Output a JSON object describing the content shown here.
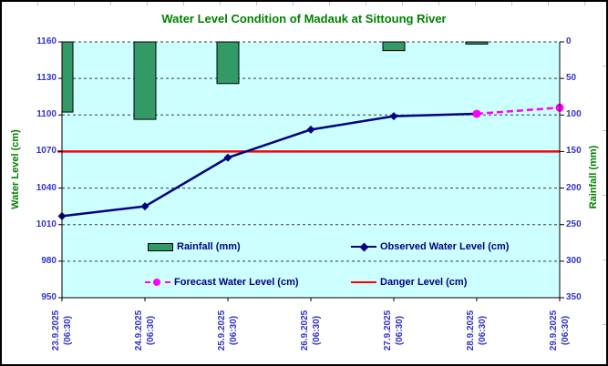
{
  "chart_data": {
    "type": "combo",
    "title": "Water Level Condition of Madauk at Sittoung River",
    "title_color": "#008000",
    "plot_bg": "#CCFFFF",
    "grid": "dashed-horizontal",
    "legend_position": "inside-bottom",
    "frame_border_color": "#000000",
    "tick_color": "#3333CC",
    "legend_text_color": "#000080",
    "categories": [
      "23.9.2025",
      "24.9.2025",
      "25.9.2025",
      "26.9.2025",
      "27.9.2025",
      "28.9.2025",
      "29.9.2025"
    ],
    "time_suffix": "(06:30)",
    "left_axis": {
      "label": "Water Level (cm)",
      "min": 950,
      "max": 1160,
      "ticks": [
        1160,
        1130,
        1100,
        1070,
        1040,
        1010,
        980,
        950
      ],
      "title_color": "#008000",
      "tick_color": "#3333CC"
    },
    "right_axis": {
      "label": "Rainfall (mm)",
      "min": 0,
      "max": 350,
      "inverted_bars_from_top": true,
      "ticks": [
        0,
        50,
        100,
        150,
        200,
        250,
        300,
        350
      ],
      "title_color": "#008000",
      "tick_color": "#3333CC"
    },
    "series": [
      {
        "name": "Rainfall (mm)",
        "type": "bar",
        "axis": "right",
        "color": "#339966",
        "border_color": "#000000",
        "values": [
          96,
          106,
          57,
          0,
          12,
          3,
          0
        ]
      },
      {
        "name": "Observed Water Level (cm)",
        "type": "line",
        "axis": "left",
        "color": "#000080",
        "marker": "diamond",
        "values": [
          1017,
          1025,
          1065,
          1088,
          1099,
          1101,
          null
        ]
      },
      {
        "name": "Forecast Water Level (cm)",
        "type": "line",
        "axis": "left",
        "color": "#FF00FF",
        "style": "dashed",
        "marker": "circle",
        "values": [
          null,
          null,
          null,
          null,
          null,
          1101,
          1106
        ]
      },
      {
        "name": "Danger Level (cm)",
        "type": "hline",
        "axis": "left",
        "color": "#FF0000",
        "value": 1070
      }
    ]
  }
}
